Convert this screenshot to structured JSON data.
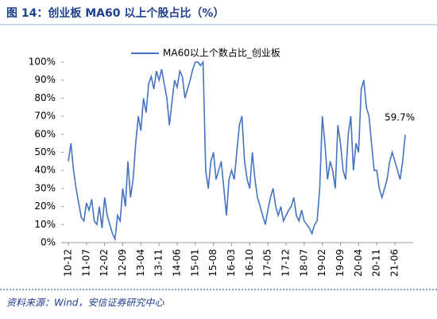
{
  "chart_data": {
    "type": "line",
    "title": "图 14：创业板 MA60 以上个股占比（%）",
    "source": "资料来源：Wind，安信证券研究中心",
    "annotation": "59.7%",
    "categories": [
      "10-12",
      null,
      null,
      null,
      null,
      null,
      null,
      "11-07",
      null,
      null,
      null,
      null,
      null,
      null,
      "12-02",
      null,
      null,
      null,
      null,
      null,
      null,
      "12-09",
      null,
      null,
      null,
      null,
      null,
      null,
      "13-04",
      null,
      null,
      null,
      null,
      null,
      null,
      "13-11",
      null,
      null,
      null,
      null,
      null,
      null,
      "14-06",
      null,
      null,
      null,
      null,
      null,
      null,
      "15-01",
      null,
      null,
      null,
      null,
      null,
      null,
      "15-08",
      null,
      null,
      null,
      null,
      null,
      null,
      "16-03",
      null,
      null,
      null,
      null,
      null,
      null,
      "16-10",
      null,
      null,
      null,
      null,
      null,
      null,
      "17-05",
      null,
      null,
      null,
      null,
      null,
      null,
      "17-12",
      null,
      null,
      null,
      null,
      null,
      null,
      "18-07",
      null,
      null,
      null,
      null,
      null,
      null,
      "19-02",
      null,
      null,
      null,
      null,
      null,
      null,
      "19-09",
      null,
      null,
      null,
      null,
      null,
      null,
      "20-04",
      null,
      null,
      null,
      null,
      null,
      null,
      "20-11",
      null,
      null,
      null,
      null,
      null,
      null,
      "21-06",
      null,
      null,
      null,
      null
    ],
    "series": [
      {
        "name": "MA60以上个数占比_创业板",
        "color": "#4472c4",
        "values": [
          45,
          55,
          40,
          30,
          22,
          14,
          12,
          22,
          18,
          24,
          12,
          10,
          20,
          8,
          25,
          15,
          10,
          5,
          2,
          15,
          12,
          30,
          20,
          45,
          25,
          35,
          55,
          70,
          62,
          80,
          72,
          88,
          92,
          85,
          95,
          90,
          96,
          88,
          80,
          65,
          78,
          90,
          86,
          95,
          92,
          80,
          85,
          90,
          96,
          100,
          100,
          98,
          100,
          40,
          30,
          45,
          50,
          35,
          40,
          45,
          30,
          15,
          35,
          40,
          35,
          50,
          65,
          70,
          45,
          35,
          30,
          50,
          35,
          25,
          20,
          15,
          10,
          18,
          25,
          30,
          20,
          15,
          20,
          12,
          15,
          18,
          20,
          25,
          15,
          12,
          18,
          12,
          10,
          8,
          5,
          10,
          12,
          30,
          70,
          55,
          35,
          45,
          40,
          30,
          65,
          55,
          40,
          35,
          60,
          70,
          40,
          55,
          50,
          85,
          90,
          75,
          70,
          55,
          40,
          40,
          30,
          25,
          30,
          35,
          45,
          50,
          45,
          40,
          35,
          45,
          59.7
        ]
      }
    ],
    "ylim": [
      0,
      100
    ],
    "yticks": [
      {
        "value": 0,
        "label": "0%"
      },
      {
        "value": 10,
        "label": "10%"
      },
      {
        "value": 20,
        "label": "20%"
      },
      {
        "value": 30,
        "label": "30%"
      },
      {
        "value": 40,
        "label": "40%"
      },
      {
        "value": 50,
        "label": "50%"
      },
      {
        "value": 60,
        "label": "60%"
      },
      {
        "value": 70,
        "label": "70%"
      },
      {
        "value": 80,
        "label": "80%"
      },
      {
        "value": 90,
        "label": "90%"
      },
      {
        "value": 100,
        "label": "100%"
      }
    ],
    "legend": "top"
  }
}
